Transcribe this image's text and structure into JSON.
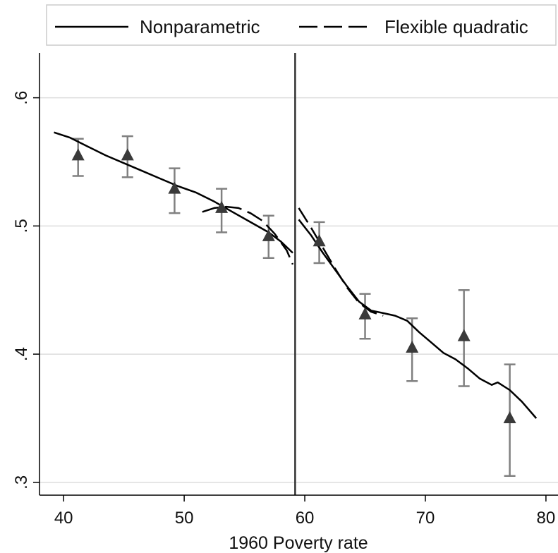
{
  "chart_data": {
    "type": "scatter",
    "xlabel": "1960 Poverty rate",
    "ylabel": "",
    "xlim": [
      38,
      81
    ],
    "ylim": [
      0.29,
      0.635
    ],
    "xticks": [
      40,
      50,
      60,
      70,
      80
    ],
    "xtick_labels": [
      "40",
      "50",
      "60",
      "70",
      "80"
    ],
    "yticks": [
      0.3,
      0.4,
      0.5,
      0.6
    ],
    "ytick_labels": [
      ".3",
      ".4",
      ".5",
      ".6"
    ],
    "grid": "horizontal",
    "cutoff": 59.2,
    "legend_position": "top",
    "series": [
      {
        "name": "Nonparametric",
        "style": "solid",
        "segments": [
          [
            [
              39.2,
              0.573
            ],
            [
              40.5,
              0.569
            ],
            [
              42.0,
              0.562
            ],
            [
              43.5,
              0.555
            ],
            [
              45.0,
              0.549
            ],
            [
              46.5,
              0.543
            ],
            [
              48.0,
              0.537
            ],
            [
              49.5,
              0.531
            ],
            [
              51.0,
              0.526
            ],
            [
              52.5,
              0.519
            ],
            [
              54.0,
              0.511
            ],
            [
              55.5,
              0.503
            ],
            [
              57.0,
              0.495
            ],
            [
              58.0,
              0.488
            ],
            [
              59.0,
              0.479
            ]
          ],
          [
            [
              59.5,
              0.505
            ],
            [
              60.5,
              0.493
            ],
            [
              61.5,
              0.479
            ],
            [
              62.5,
              0.466
            ],
            [
              63.5,
              0.453
            ],
            [
              64.5,
              0.441
            ],
            [
              65.5,
              0.434
            ],
            [
              66.5,
              0.432
            ],
            [
              67.5,
              0.43
            ],
            [
              68.5,
              0.426
            ],
            [
              69.5,
              0.417
            ],
            [
              70.5,
              0.409
            ],
            [
              71.5,
              0.401
            ],
            [
              72.5,
              0.396
            ],
            [
              73.5,
              0.389
            ],
            [
              74.5,
              0.381
            ],
            [
              75.5,
              0.376
            ],
            [
              76.0,
              0.378
            ],
            [
              77.0,
              0.372
            ],
            [
              78.0,
              0.363
            ],
            [
              79.2,
              0.35
            ]
          ]
        ]
      },
      {
        "name": "Flexible quadratic",
        "style": "dashed",
        "segments": [
          [
            [
              51.5,
              0.511
            ],
            [
              52.5,
              0.514
            ],
            [
              53.5,
              0.515
            ],
            [
              54.5,
              0.514
            ],
            [
              55.5,
              0.51
            ],
            [
              56.5,
              0.504
            ],
            [
              57.5,
              0.494
            ],
            [
              58.5,
              0.481
            ],
            [
              59.0,
              0.47
            ]
          ],
          [
            [
              59.5,
              0.514
            ],
            [
              60.5,
              0.499
            ],
            [
              61.5,
              0.483
            ],
            [
              62.5,
              0.467
            ],
            [
              63.5,
              0.452
            ],
            [
              64.5,
              0.44
            ],
            [
              65.5,
              0.433
            ],
            [
              66.5,
              0.43
            ]
          ]
        ]
      },
      {
        "name": "",
        "style": "markers",
        "points": [
          {
            "x": 41.2,
            "y": 0.555,
            "lo": 0.539,
            "hi": 0.568
          },
          {
            "x": 45.3,
            "y": 0.555,
            "lo": 0.538,
            "hi": 0.57
          },
          {
            "x": 49.2,
            "y": 0.529,
            "lo": 0.51,
            "hi": 0.545
          },
          {
            "x": 53.1,
            "y": 0.514,
            "lo": 0.495,
            "hi": 0.529
          },
          {
            "x": 57.0,
            "y": 0.492,
            "lo": 0.475,
            "hi": 0.508
          },
          {
            "x": 61.2,
            "y": 0.488,
            "lo": 0.471,
            "hi": 0.503
          },
          {
            "x": 65.0,
            "y": 0.431,
            "lo": 0.412,
            "hi": 0.447
          },
          {
            "x": 68.9,
            "y": 0.405,
            "lo": 0.379,
            "hi": 0.428
          },
          {
            "x": 73.2,
            "y": 0.414,
            "lo": 0.375,
            "hi": 0.45
          },
          {
            "x": 77.0,
            "y": 0.35,
            "lo": 0.305,
            "hi": 0.392
          }
        ]
      }
    ],
    "colors": {
      "line": "#000000",
      "marker": "#3a3a3a",
      "error_bar": "#808080",
      "grid": "#dddddd",
      "cutoff": "#333333"
    }
  }
}
